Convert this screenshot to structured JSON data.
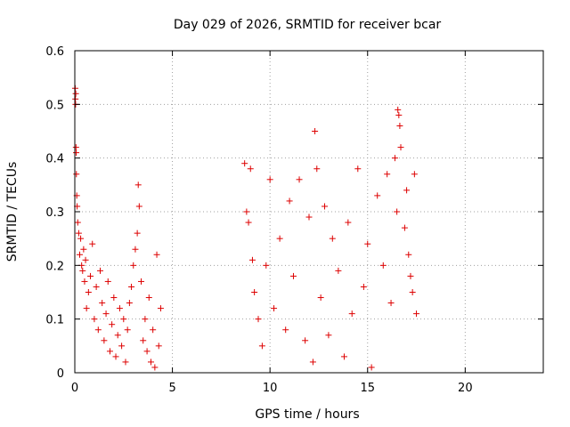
{
  "chart_data": {
    "type": "scatter",
    "title": "Day 029 of 2026, SRMTID for receiver bcar",
    "xlabel": "GPS time / hours",
    "ylabel": "SRMTID / TECUs",
    "xlim": [
      0,
      24
    ],
    "ylim": [
      0,
      0.6
    ],
    "xticks": [
      0,
      5,
      10,
      15,
      20
    ],
    "yticks": [
      0,
      0.1,
      0.2,
      0.3,
      0.4,
      0.5,
      0.6
    ],
    "xtick_labels": [
      "0",
      "5",
      "10",
      "15",
      "20"
    ],
    "ytick_labels": [
      "0",
      "0.1",
      "0.2",
      "0.3",
      "0.4",
      "0.5",
      "0.6"
    ],
    "grid": true,
    "marker": "+",
    "color": "#dd0000",
    "series": [
      {
        "name": "SRMTID",
        "segments": [
          {
            "x_start": 0.0,
            "x_end": 4.5,
            "typical_range": [
              0.0,
              0.28
            ]
          },
          {
            "x_start": 8.6,
            "x_end": 17.5,
            "typical_range": [
              0.0,
              0.38
            ]
          }
        ],
        "points": [
          [
            0.02,
            0.53
          ],
          [
            0.03,
            0.51
          ],
          [
            0.04,
            0.5
          ],
          [
            0.05,
            0.52
          ],
          [
            0.06,
            0.42
          ],
          [
            0.07,
            0.41
          ],
          [
            0.08,
            0.37
          ],
          [
            0.1,
            0.33
          ],
          [
            0.12,
            0.31
          ],
          [
            0.15,
            0.28
          ],
          [
            0.2,
            0.26
          ],
          [
            0.25,
            0.22
          ],
          [
            0.3,
            0.25
          ],
          [
            0.35,
            0.2
          ],
          [
            0.4,
            0.19
          ],
          [
            0.45,
            0.23
          ],
          [
            0.5,
            0.17
          ],
          [
            0.55,
            0.21
          ],
          [
            0.6,
            0.12
          ],
          [
            0.7,
            0.15
          ],
          [
            0.8,
            0.18
          ],
          [
            0.9,
            0.24
          ],
          [
            1.0,
            0.1
          ],
          [
            1.1,
            0.16
          ],
          [
            1.2,
            0.08
          ],
          [
            1.3,
            0.19
          ],
          [
            1.4,
            0.13
          ],
          [
            1.5,
            0.06
          ],
          [
            1.6,
            0.11
          ],
          [
            1.7,
            0.17
          ],
          [
            1.8,
            0.04
          ],
          [
            1.9,
            0.09
          ],
          [
            2.0,
            0.14
          ],
          [
            2.1,
            0.03
          ],
          [
            2.2,
            0.07
          ],
          [
            2.3,
            0.12
          ],
          [
            2.4,
            0.05
          ],
          [
            2.5,
            0.1
          ],
          [
            2.6,
            0.02
          ],
          [
            2.7,
            0.08
          ],
          [
            2.8,
            0.13
          ],
          [
            2.9,
            0.16
          ],
          [
            3.0,
            0.2
          ],
          [
            3.1,
            0.23
          ],
          [
            3.2,
            0.26
          ],
          [
            3.25,
            0.35
          ],
          [
            3.3,
            0.31
          ],
          [
            3.4,
            0.17
          ],
          [
            3.5,
            0.06
          ],
          [
            3.6,
            0.1
          ],
          [
            3.7,
            0.04
          ],
          [
            3.8,
            0.14
          ],
          [
            3.9,
            0.02
          ],
          [
            4.0,
            0.08
          ],
          [
            4.1,
            0.01
          ],
          [
            4.2,
            0.22
          ],
          [
            4.3,
            0.05
          ],
          [
            4.4,
            0.12
          ],
          [
            8.7,
            0.39
          ],
          [
            8.8,
            0.3
          ],
          [
            8.9,
            0.28
          ],
          [
            9.0,
            0.38
          ],
          [
            9.1,
            0.21
          ],
          [
            9.2,
            0.15
          ],
          [
            9.4,
            0.1
          ],
          [
            9.6,
            0.05
          ],
          [
            9.8,
            0.2
          ],
          [
            10.0,
            0.36
          ],
          [
            10.2,
            0.12
          ],
          [
            10.5,
            0.25
          ],
          [
            10.8,
            0.08
          ],
          [
            11.0,
            0.32
          ],
          [
            11.2,
            0.18
          ],
          [
            11.5,
            0.36
          ],
          [
            11.8,
            0.06
          ],
          [
            12.0,
            0.29
          ],
          [
            12.2,
            0.02
          ],
          [
            12.3,
            0.45
          ],
          [
            12.4,
            0.38
          ],
          [
            12.6,
            0.14
          ],
          [
            12.8,
            0.31
          ],
          [
            13.0,
            0.07
          ],
          [
            13.2,
            0.25
          ],
          [
            13.5,
            0.19
          ],
          [
            13.8,
            0.03
          ],
          [
            14.0,
            0.28
          ],
          [
            14.2,
            0.11
          ],
          [
            14.5,
            0.38
          ],
          [
            14.8,
            0.16
          ],
          [
            15.0,
            0.24
          ],
          [
            15.2,
            0.01
          ],
          [
            15.5,
            0.33
          ],
          [
            15.8,
            0.2
          ],
          [
            16.0,
            0.37
          ],
          [
            16.2,
            0.13
          ],
          [
            16.4,
            0.4
          ],
          [
            16.5,
            0.3
          ],
          [
            16.55,
            0.49
          ],
          [
            16.6,
            0.48
          ],
          [
            16.65,
            0.46
          ],
          [
            16.7,
            0.42
          ],
          [
            16.9,
            0.27
          ],
          [
            17.0,
            0.34
          ],
          [
            17.1,
            0.22
          ],
          [
            17.2,
            0.18
          ],
          [
            17.3,
            0.15
          ],
          [
            17.4,
            0.37
          ],
          [
            17.5,
            0.11
          ]
        ]
      }
    ]
  }
}
